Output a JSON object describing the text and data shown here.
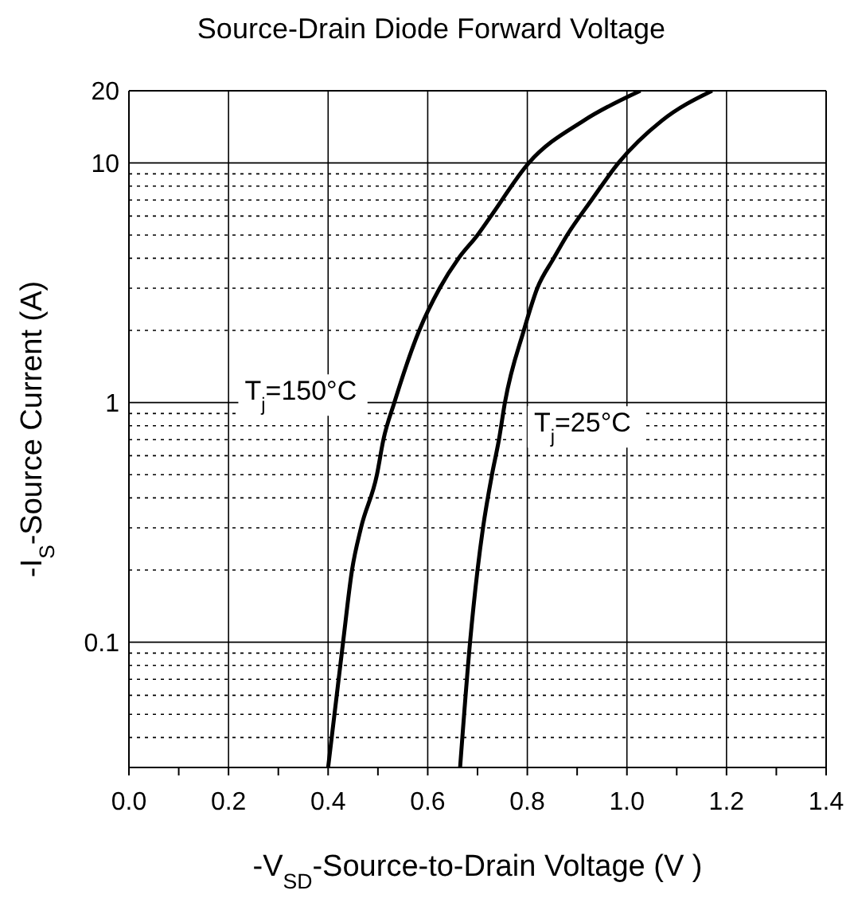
{
  "chart_data": {
    "type": "line",
    "title": "Source-Drain Diode Forward Voltage",
    "xlabel": "-V$_{SD}$-Source-to-Drain Voltage (V )",
    "ylabel": "-I$_{S}$-Source Current (A)",
    "log": "y",
    "grid": true,
    "line_style": "solid",
    "marker": "none",
    "legend": false,
    "xlim": [
      0,
      1.4
    ],
    "xticks": [
      {
        "value": 0,
        "label": "0.0"
      },
      {
        "value": 0.1,
        "label": null
      },
      {
        "value": 0.2,
        "label": "0.2"
      },
      {
        "value": 0.3,
        "label": null
      },
      {
        "value": 0.4,
        "label": "0.4"
      },
      {
        "value": 0.5,
        "label": null
      },
      {
        "value": 0.6,
        "label": "0.6"
      },
      {
        "value": 0.7,
        "label": null
      },
      {
        "value": 0.8,
        "label": "0.8"
      },
      {
        "value": 0.9,
        "label": null
      },
      {
        "value": 1.0,
        "label": "1.0"
      },
      {
        "value": 1.1,
        "label": null
      },
      {
        "value": 1.2,
        "label": "1.2"
      },
      {
        "value": 1.3,
        "label": null
      },
      {
        "value": 1.4,
        "label": "1.4"
      }
    ],
    "ylim": [
      0.03,
      20
    ],
    "yticks": [
      {
        "value": 0.04,
        "label": null
      },
      {
        "value": 0.05,
        "label": null
      },
      {
        "value": 0.06,
        "label": null
      },
      {
        "value": 0.07,
        "label": null
      },
      {
        "value": 0.08,
        "label": null
      },
      {
        "value": 0.09,
        "label": null
      },
      0.1,
      {
        "value": 0.2,
        "label": null
      },
      {
        "value": 0.3,
        "label": null
      },
      {
        "value": 0.4,
        "label": null
      },
      {
        "value": 0.5,
        "label": null
      },
      {
        "value": 0.6,
        "label": null
      },
      {
        "value": 0.7,
        "label": null
      },
      {
        "value": 0.8,
        "label": null
      },
      {
        "value": 0.9,
        "label": null
      },
      1,
      {
        "value": 2,
        "label": null
      },
      {
        "value": 3,
        "label": null
      },
      {
        "value": 4,
        "label": null
      },
      {
        "value": 5,
        "label": null
      },
      {
        "value": 6,
        "label": null
      },
      {
        "value": 7,
        "label": null
      },
      {
        "value": 8,
        "label": null
      },
      {
        "value": 9,
        "label": null
      },
      10,
      20
    ],
    "series": [
      {
        "name": "T$_{j}$=150°C",
        "color": "#000000",
        "x": [
          0.4,
          0.43,
          0.448,
          0.466,
          0.498,
          0.511,
          0.533,
          0.583,
          0.624,
          0.662,
          0.7,
          0.727,
          0.803,
          0.913,
          1.027
        ],
        "values": [
          0.03,
          0.1,
          0.2,
          0.3,
          0.5,
          0.7,
          1,
          2,
          3,
          4,
          5,
          6,
          10,
          15,
          20
        ]
      },
      {
        "name": "T$_{j}$=25°C",
        "color": "#000000",
        "x": [
          0.665,
          0.685,
          0.7,
          0.711,
          0.729,
          0.743,
          0.755,
          0.793,
          0.82,
          0.853,
          0.88,
          0.929,
          0.983,
          1.07,
          1.171
        ],
        "values": [
          0.03,
          0.1,
          0.2,
          0.3,
          0.5,
          0.7,
          1,
          2,
          3,
          4,
          5,
          7,
          10,
          15,
          20
        ]
      }
    ]
  }
}
